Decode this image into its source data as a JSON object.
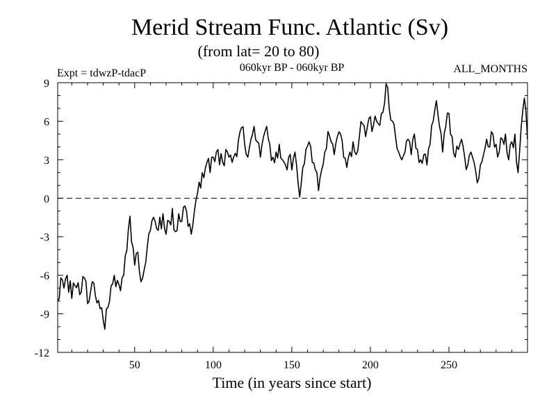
{
  "chart_data": {
    "type": "line",
    "title": "Merid Stream Func. Atlantic (Sv)",
    "subtitle": "(from lat= 20 to 80)",
    "expt_label": "Expt = tdwzP-tdacP",
    "period_label": "060kyr BP - 060kyr BP",
    "season_label": "ALL_MONTHS",
    "xlabel": "Time (in years since start)",
    "ylabel": "",
    "xlim": [
      1,
      300
    ],
    "ylim": [
      -12,
      9
    ],
    "x_ticks": [
      50,
      100,
      150,
      200,
      250
    ],
    "y_ticks": [
      -12,
      -9,
      -6,
      -3,
      0,
      3,
      6,
      9
    ],
    "zero_line": {
      "value": 0,
      "style": "dashed"
    },
    "series": [
      {
        "name": "Merid Stream Func.",
        "color": "#000000",
        "keypoints": [
          [
            1,
            -8.0
          ],
          [
            3,
            -6.2
          ],
          [
            5,
            -7.0
          ],
          [
            7,
            -6.0
          ],
          [
            10,
            -7.8
          ],
          [
            12,
            -6.8
          ],
          [
            15,
            -7.5
          ],
          [
            18,
            -6.2
          ],
          [
            20,
            -8.2
          ],
          [
            23,
            -6.5
          ],
          [
            25,
            -7.6
          ],
          [
            28,
            -8.6
          ],
          [
            30,
            -9.5
          ],
          [
            31,
            -10.2
          ],
          [
            33,
            -8.5
          ],
          [
            35,
            -6.8
          ],
          [
            37,
            -6.0
          ],
          [
            39,
            -6.4
          ],
          [
            41,
            -7.2
          ],
          [
            42,
            -6.2
          ],
          [
            44,
            -4.5
          ],
          [
            46,
            -2.4
          ],
          [
            47,
            -1.4
          ],
          [
            48,
            -3.4
          ],
          [
            50,
            -5.2
          ],
          [
            52,
            -4.2
          ],
          [
            54,
            -6.5
          ],
          [
            56,
            -5.6
          ],
          [
            58,
            -3.8
          ],
          [
            60,
            -2.5
          ],
          [
            63,
            -1.8
          ],
          [
            65,
            -2.5
          ],
          [
            68,
            -1.2
          ],
          [
            70,
            -2.8
          ],
          [
            72,
            -1.8
          ],
          [
            74,
            -0.8
          ],
          [
            76,
            -2.6
          ],
          [
            78,
            -1.2
          ],
          [
            80,
            -1.8
          ],
          [
            82,
            -0.6
          ],
          [
            84,
            -2.2
          ],
          [
            86,
            -2.8
          ],
          [
            88,
            -1.0
          ],
          [
            90,
            0.4
          ],
          [
            92,
            0.8
          ],
          [
            94,
            1.6
          ],
          [
            96,
            2.8
          ],
          [
            98,
            2.0
          ],
          [
            100,
            3.2
          ],
          [
            102,
            3.6
          ],
          [
            104,
            2.6
          ],
          [
            106,
            2.8
          ],
          [
            108,
            3.8
          ],
          [
            110,
            3.2
          ],
          [
            112,
            2.8
          ],
          [
            114,
            3.5
          ],
          [
            116,
            4.5
          ],
          [
            118,
            5.5
          ],
          [
            120,
            4.2
          ],
          [
            122,
            3.2
          ],
          [
            124,
            4.6
          ],
          [
            126,
            5.6
          ],
          [
            128,
            4.4
          ],
          [
            130,
            3.2
          ],
          [
            132,
            4.8
          ],
          [
            134,
            5.6
          ],
          [
            136,
            4.2
          ],
          [
            138,
            3.2
          ],
          [
            140,
            3.6
          ],
          [
            142,
            4.2
          ],
          [
            144,
            3.0
          ],
          [
            146,
            2.6
          ],
          [
            148,
            3.2
          ],
          [
            150,
            2.2
          ],
          [
            152,
            3.6
          ],
          [
            154,
            1.2
          ],
          [
            155,
            0.1
          ],
          [
            157,
            2.4
          ],
          [
            159,
            3.8
          ],
          [
            161,
            4.4
          ],
          [
            163,
            2.8
          ],
          [
            165,
            2.2
          ],
          [
            167,
            0.6
          ],
          [
            169,
            2.2
          ],
          [
            171,
            3.6
          ],
          [
            173,
            5.2
          ],
          [
            175,
            4.4
          ],
          [
            177,
            3.4
          ],
          [
            179,
            4.8
          ],
          [
            181,
            5.0
          ],
          [
            183,
            3.2
          ],
          [
            185,
            2.4
          ],
          [
            187,
            3.6
          ],
          [
            189,
            4.4
          ],
          [
            191,
            3.4
          ],
          [
            193,
            4.8
          ],
          [
            195,
            5.8
          ],
          [
            197,
            4.8
          ],
          [
            199,
            6.2
          ],
          [
            201,
            5.2
          ],
          [
            203,
            6.4
          ],
          [
            205,
            5.8
          ],
          [
            207,
            6.6
          ],
          [
            209,
            7.4
          ],
          [
            210,
            8.9
          ],
          [
            212,
            7.0
          ],
          [
            214,
            6.0
          ],
          [
            216,
            4.8
          ],
          [
            218,
            3.6
          ],
          [
            220,
            3.0
          ],
          [
            222,
            3.6
          ],
          [
            224,
            4.6
          ],
          [
            226,
            3.4
          ],
          [
            228,
            5.0
          ],
          [
            230,
            3.8
          ],
          [
            232,
            3.0
          ],
          [
            234,
            3.4
          ],
          [
            236,
            2.6
          ],
          [
            238,
            4.2
          ],
          [
            240,
            6.0
          ],
          [
            242,
            7.6
          ],
          [
            244,
            5.6
          ],
          [
            246,
            3.6
          ],
          [
            248,
            5.6
          ],
          [
            250,
            6.6
          ],
          [
            252,
            4.8
          ],
          [
            254,
            3.2
          ],
          [
            256,
            3.8
          ],
          [
            258,
            4.6
          ],
          [
            260,
            3.2
          ],
          [
            262,
            2.6
          ],
          [
            264,
            3.6
          ],
          [
            266,
            2.8
          ],
          [
            268,
            1.2
          ],
          [
            270,
            2.6
          ],
          [
            272,
            3.4
          ],
          [
            274,
            4.6
          ],
          [
            276,
            4.0
          ],
          [
            278,
            5.0
          ],
          [
            280,
            4.2
          ],
          [
            282,
            3.6
          ],
          [
            284,
            4.6
          ],
          [
            286,
            5.0
          ],
          [
            288,
            3.0
          ],
          [
            290,
            4.4
          ],
          [
            292,
            5.0
          ],
          [
            294,
            2.0
          ],
          [
            296,
            5.6
          ],
          [
            298,
            7.8
          ],
          [
            299,
            6.8
          ],
          [
            300,
            4.6
          ]
        ]
      }
    ]
  }
}
